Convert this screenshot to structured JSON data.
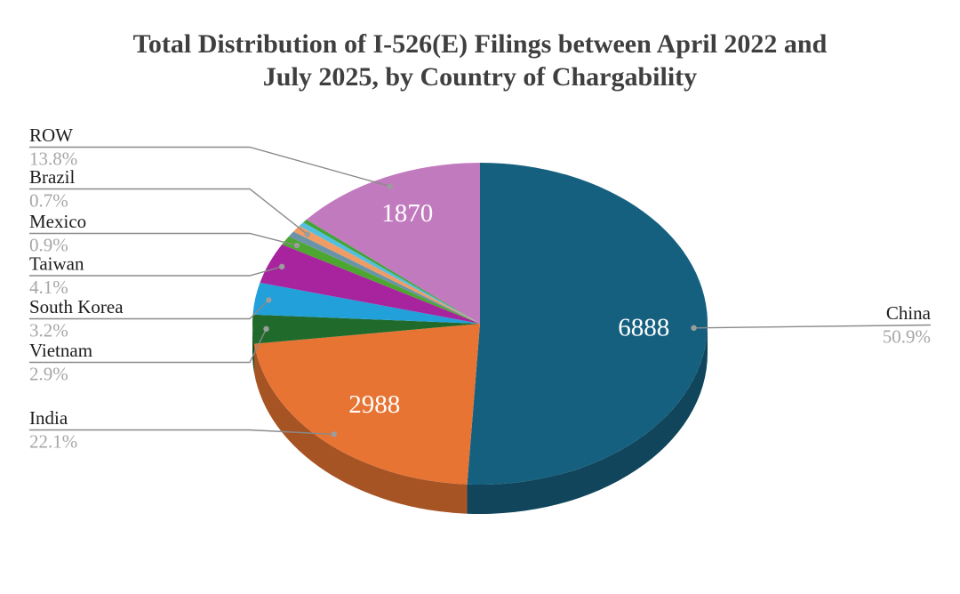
{
  "page": {
    "background": "#ffffff"
  },
  "header": {
    "title_lines": [
      "Total Distribution of I-526(E) Filings between April 2022 and",
      "July 2025, by Country of Chargability"
    ]
  },
  "chart_data": {
    "type": "pie",
    "style": "3d",
    "title": "Total Distribution of I-526(E) Filings between April 2022 and July 2025, by Country of Chargability",
    "start_angle_deg": 0,
    "direction": "clockwise",
    "legend": "none (callout labels)",
    "slices": [
      {
        "label": "China",
        "value": 6888,
        "pct": 50.9,
        "pct_label": "50.9%",
        "value_label": "6888",
        "color": "#16607F"
      },
      {
        "label": "India",
        "value": 2988,
        "pct": 22.1,
        "pct_label": "22.1%",
        "value_label": "2988",
        "color": "#E87434"
      },
      {
        "label": "Vietnam",
        "pct": 2.9,
        "pct_label": "2.9%",
        "color": "#206B2B"
      },
      {
        "label": "South Korea",
        "pct": 3.2,
        "pct_label": "3.2%",
        "color": "#22A0DA"
      },
      {
        "label": "Taiwan",
        "pct": 4.1,
        "pct_label": "4.1%",
        "color": "#A8239E"
      },
      {
        "label": "Mexico",
        "pct": 0.9,
        "pct_label": "0.9%",
        "color": "#4CA630"
      },
      {
        "label": "",
        "pct": 0.6,
        "color": "#6B93A8"
      },
      {
        "label": "Brazil",
        "pct": 0.7,
        "pct_label": "0.7%",
        "color": "#F09C64"
      },
      {
        "label": "",
        "pct": 0.45,
        "color": "#52BFE0"
      },
      {
        "label": "",
        "pct": 0.35,
        "color": "#46A33C"
      },
      {
        "label": "ROW",
        "value": 1870,
        "pct": 13.8,
        "pct_label": "13.8%",
        "value_label": "1870",
        "color": "#C27ABF"
      }
    ],
    "colors": {
      "title_text": "#3F3F3F",
      "label_text": "#1C1C1C",
      "pct_text": "#A6A6A6",
      "leader_line": "#8A8A8A",
      "dot": "#9C9C9C",
      "value_text": "#FFFFFF"
    }
  }
}
